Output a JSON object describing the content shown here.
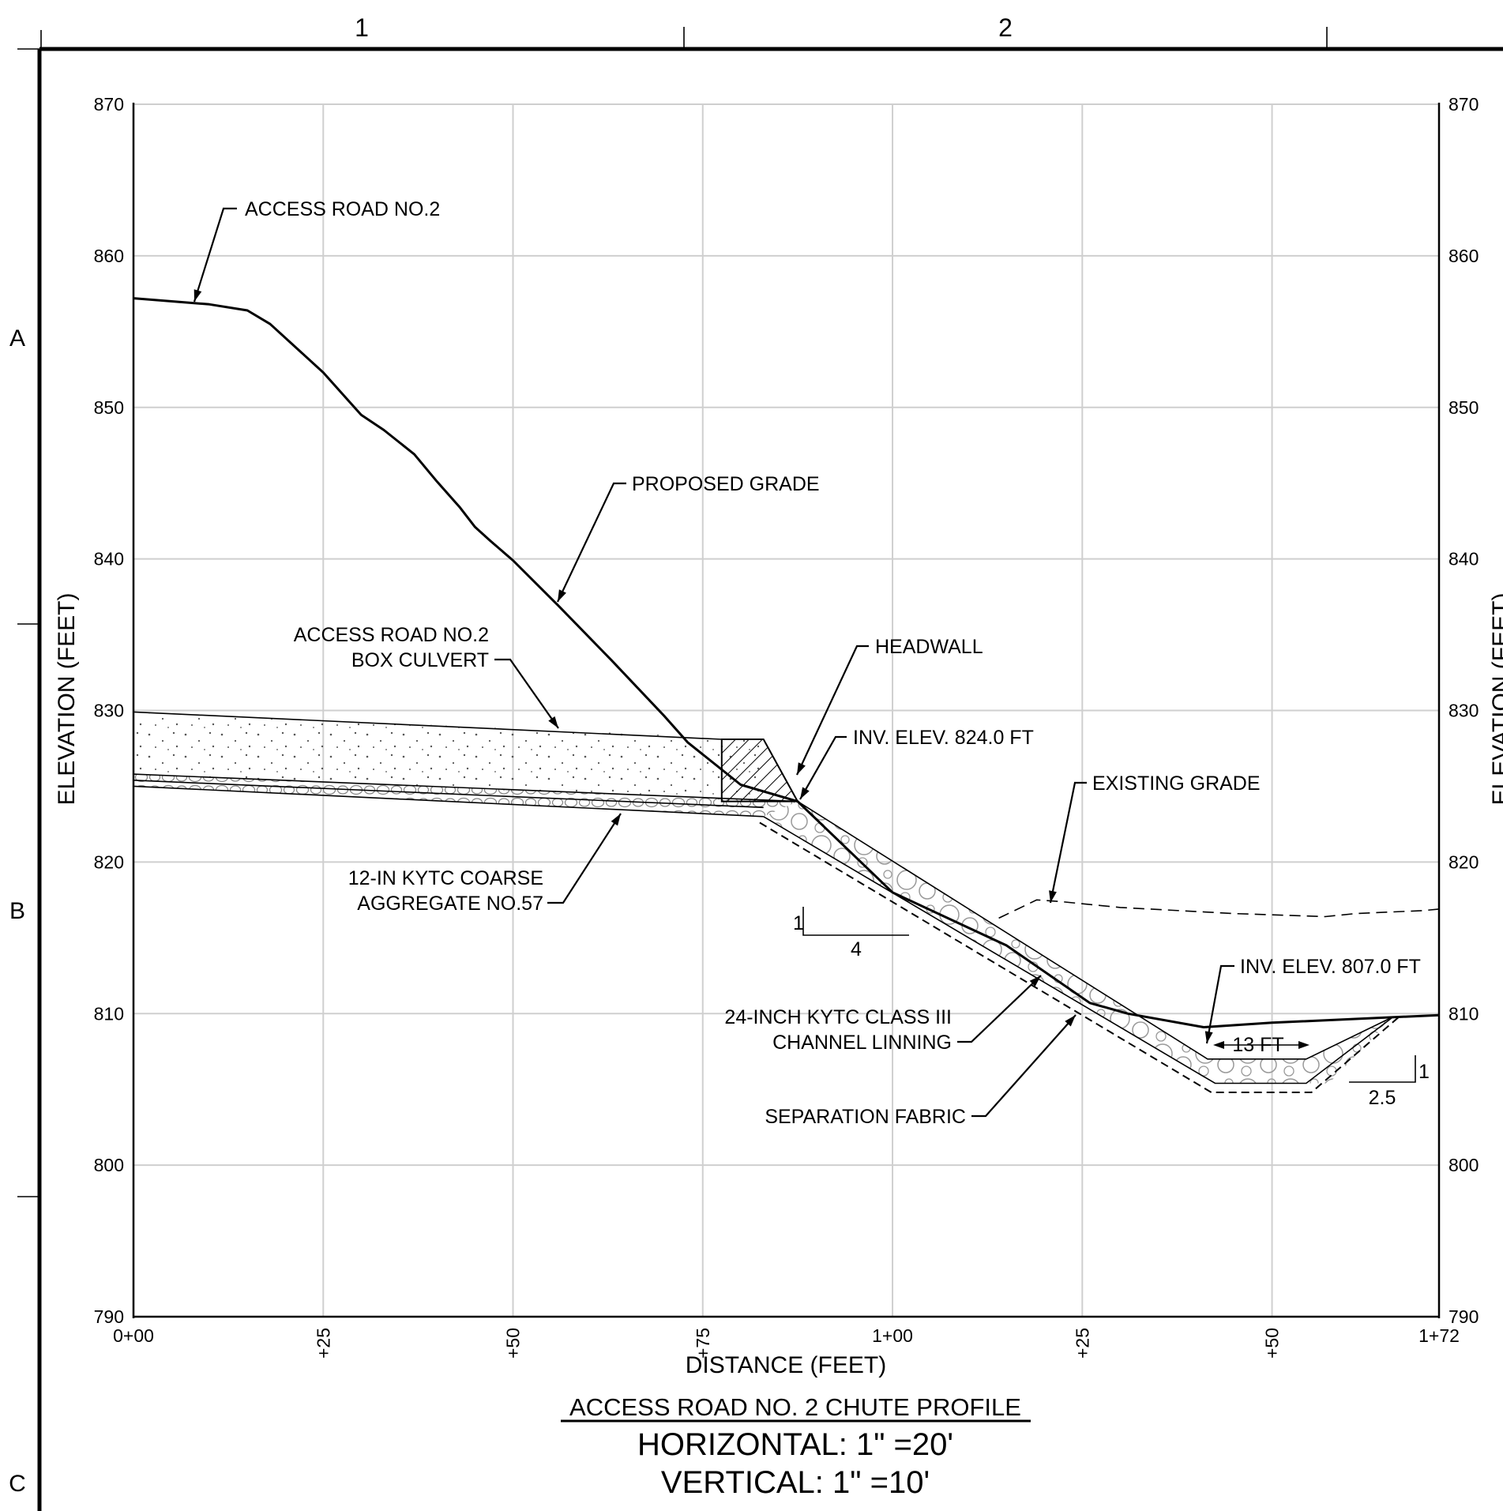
{
  "zones": {
    "columns": [
      "1",
      "2"
    ],
    "rows": [
      "A",
      "B",
      "C"
    ]
  },
  "chart_data": {
    "type": "profile",
    "x_unit": "FEET",
    "y_unit": "FEET",
    "xlim": [
      0,
      172
    ],
    "ylim": [
      790,
      870
    ],
    "y_ticks": [
      870,
      860,
      850,
      840,
      830,
      820,
      810,
      800,
      790
    ],
    "y_tick_labels": [
      "870",
      "860",
      "850",
      "840",
      "830",
      "820",
      "810",
      "800",
      "790"
    ],
    "x_ticks": [
      0,
      25,
      50,
      75,
      100,
      125,
      150,
      172
    ],
    "x_tick_labels": [
      "0+00",
      "+25",
      "+50",
      "+75",
      "1+00",
      "+25",
      "+50",
      "1+72"
    ],
    "xlabel": "DISTANCE (FEET)",
    "ylabel": "ELEVATION (FEET)",
    "grid": true,
    "series": [
      {
        "name": "PROPOSED GRADE",
        "x": [
          0,
          10,
          15,
          18,
          25,
          30,
          33,
          37,
          40,
          43,
          45,
          47,
          50,
          56,
          63,
          70,
          73,
          80,
          87.5,
          100,
          115,
          126,
          131,
          141,
          150,
          172
        ],
        "y": [
          857.2,
          856.8,
          856.4,
          855.5,
          852.3,
          849.5,
          848.5,
          846.9,
          845.1,
          843.4,
          842.1,
          841.2,
          839.9,
          836.9,
          833.3,
          829.6,
          827.9,
          825.1,
          824.0,
          818.0,
          814.5,
          810.7,
          810.0,
          809.1,
          809.4,
          809.9
        ]
      },
      {
        "name": "EXISTING GRADE",
        "x": [
          114,
          119,
          122,
          130,
          145,
          157,
          161,
          170,
          172
        ],
        "y": [
          816.3,
          817.5,
          817.4,
          817.0,
          816.6,
          816.4,
          816.6,
          816.8,
          816.9
        ]
      }
    ],
    "labels": {
      "access_road": "ACCESS ROAD NO.2",
      "proposed_grade": "PROPOSED GRADE",
      "box_culvert_1": "ACCESS ROAD NO.2",
      "box_culvert_2": "BOX CULVERT",
      "headwall": "HEADWALL",
      "inv_upper": "INV. ELEV. 824.0 FT",
      "existing_grade": "EXISTING GRADE",
      "aggregate_1": "12-IN KYTC COARSE",
      "aggregate_2": "AGGREGATE NO.57",
      "lining_1": "24-INCH KYTC CLASS III",
      "lining_2": "CHANNEL LINNING",
      "fabric": "SEPARATION FABRIC",
      "inv_lower": "INV. ELEV. 807.0 FT",
      "bottom_width": "13 FT",
      "slope_upper_rise": "1",
      "slope_upper_run": "4",
      "slope_lower_rise": "1",
      "slope_lower_run": "2.5"
    }
  },
  "title": {
    "main": "ACCESS ROAD NO. 2 CHUTE PROFILE",
    "horizontal": "HORIZONTAL: 1\" =20'",
    "vertical": "VERTICAL: 1\" =10'"
  }
}
